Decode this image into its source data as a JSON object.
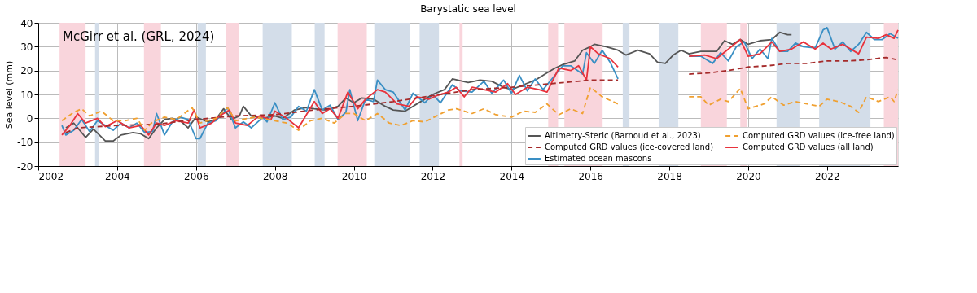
{
  "chart_data": {
    "type": "line",
    "title": "Barystatic sea level",
    "ylabel": "Sea level (mm)",
    "annotations": [
      "McGirr et al. (GRL, 2024)"
    ],
    "xlim": [
      2002,
      2023.8
    ],
    "xticks": [
      2002,
      2004,
      2006,
      2008,
      2010,
      2012,
      2014,
      2016,
      2018,
      2020,
      2022
    ],
    "ylim": [
      -20,
      40
    ],
    "yticks": [
      -20,
      -10,
      0,
      10,
      20,
      30,
      40
    ],
    "grid": true,
    "legend": "bottom right",
    "marker": "none",
    "bands": [
      {
        "axis": "x",
        "from": 2002.54,
        "to": 2003.2,
        "color": "#f9d5dc"
      },
      {
        "axis": "x",
        "from": 2003.44,
        "to": 2003.53,
        "color": "#d3dde9"
      },
      {
        "axis": "x",
        "from": 2004.68,
        "to": 2005.11,
        "color": "#f9d5dc"
      },
      {
        "axis": "x",
        "from": 2006.04,
        "to": 2006.25,
        "color": "#d3dde9"
      },
      {
        "axis": "x",
        "from": 2006.76,
        "to": 2007.09,
        "color": "#f9d5dc"
      },
      {
        "axis": "x",
        "from": 2007.69,
        "to": 2008.43,
        "color": "#d3dde9"
      },
      {
        "axis": "x",
        "from": 2009.01,
        "to": 2009.26,
        "color": "#d3dde9"
      },
      {
        "axis": "x",
        "from": 2009.59,
        "to": 2010.33,
        "color": "#f9d5dc"
      },
      {
        "axis": "x",
        "from": 2010.52,
        "to": 2011.42,
        "color": "#d3dde9"
      },
      {
        "axis": "x",
        "from": 2011.67,
        "to": 2012.16,
        "color": "#d3dde9"
      },
      {
        "axis": "x",
        "from": 2012.68,
        "to": 2012.76,
        "color": "#f9d5dc"
      },
      {
        "axis": "x",
        "from": 2014.93,
        "to": 2015.18,
        "color": "#f9d5dc"
      },
      {
        "axis": "x",
        "from": 2015.34,
        "to": 2016.31,
        "color": "#f9d5dc"
      },
      {
        "axis": "x",
        "from": 2016.82,
        "to": 2016.99,
        "color": "#d3dde9"
      },
      {
        "axis": "x",
        "from": 2017.73,
        "to": 2018.23,
        "color": "#d3dde9"
      },
      {
        "axis": "x",
        "from": 2018.8,
        "to": 2019.46,
        "color": "#f9d5dc"
      },
      {
        "axis": "x",
        "from": 2019.8,
        "to": 2019.96,
        "color": "#f9d5dc"
      },
      {
        "axis": "x",
        "from": 2020.72,
        "to": 2021.3,
        "color": "#d3dde9"
      },
      {
        "axis": "x",
        "from": 2021.8,
        "to": 2023.1,
        "color": "#d3dde9"
      },
      {
        "axis": "x",
        "from": 2023.44,
        "to": 2023.8,
        "color": "#f9d5dc"
      }
    ],
    "series": [
      {
        "name": "Altimetry-Steric (Barnoud et al., 2023)",
        "color": "#555555",
        "line_style": "solid",
        "x": [
          2002.7,
          2002.9,
          2003.2,
          2003.4,
          2003.7,
          2003.9,
          2004.1,
          2004.4,
          2004.6,
          2004.8,
          2005.0,
          2005.2,
          2005.4,
          2005.6,
          2005.8,
          2006.0,
          2006.3,
          2006.5,
          2006.7,
          2006.9,
          2007.1,
          2007.2,
          2007.4,
          2007.7,
          2008.0,
          2008.2,
          2008.5,
          2008.8,
          2009.0,
          2009.3,
          2009.6,
          2009.8,
          2010.0,
          2010.2,
          2010.5,
          2010.8,
          2011.0,
          2011.3,
          2011.5,
          2011.8,
          2012.0,
          2012.3,
          2012.5,
          2012.9,
          2013.2,
          2013.5,
          2013.8,
          2014.0,
          2014.3,
          2014.6,
          2014.9,
          2015.1,
          2015.3,
          2015.6,
          2015.8,
          2016.0,
          2016.1,
          2016.4,
          2016.7,
          2016.9,
          2017.2,
          2017.5,
          2017.7,
          2017.9,
          2018.1,
          2018.3,
          2018.5,
          2018.8,
          2019.2,
          2019.4,
          2019.6,
          2019.8,
          2020.0,
          2020.3,
          2020.6,
          2020.8,
          2021.0,
          2021.1
        ],
        "values": [
          -4,
          -2,
          -8,
          -4.5,
          -9.5,
          -9.5,
          -7,
          -6,
          -6.5,
          -8.5,
          -4,
          -0.5,
          0,
          -1,
          -4,
          0.5,
          -1.5,
          -0.5,
          4,
          -0.5,
          1,
          5,
          1,
          0,
          1,
          0,
          3.5,
          4.5,
          4,
          3.5,
          5,
          8.5,
          6.5,
          8.5,
          8,
          5,
          3.5,
          3,
          5,
          8,
          10,
          12,
          16.5,
          15,
          16,
          15.5,
          13,
          12,
          14,
          16,
          19,
          21,
          22.5,
          24,
          28.5,
          30,
          31,
          30,
          28.5,
          26.5,
          28.5,
          27,
          23.5,
          23,
          26.5,
          28.5,
          27,
          28,
          28,
          32.5,
          31,
          33,
          31,
          32.5,
          33,
          36,
          35,
          35
        ]
      },
      {
        "name": "Estimated ocean mascons",
        "color": "#3a8fc4",
        "line_style": "solid",
        "x": [
          2002.6,
          2002.7,
          2002.9,
          2003.1,
          2003.3,
          2003.5,
          2003.7,
          2003.9,
          2004.1,
          2004.3,
          2004.5,
          2004.7,
          2004.9,
          2005.0,
          2005.2,
          2005.4,
          2005.6,
          2005.8,
          2006.0,
          2006.1,
          2006.3,
          2006.5,
          2006.7,
          2006.8,
          2007.0,
          2007.2,
          2007.4,
          2007.7,
          2007.8,
          2008.0,
          2008.2,
          2008.4,
          2008.6,
          2008.8,
          2009.0,
          2009.2,
          2009.4,
          2009.6,
          2009.8,
          2009.9,
          2010.1,
          2010.3,
          2010.5,
          2010.6,
          2010.8,
          2011.0,
          2011.3,
          2011.5,
          2011.8,
          2012.0,
          2012.2,
          2012.5,
          2012.7,
          2013.0,
          2013.3,
          2013.5,
          2013.8,
          2014.0,
          2014.2,
          2014.4,
          2014.6,
          2014.8,
          2015.1,
          2015.3,
          2015.5,
          2015.8,
          2015.9,
          2016.1,
          2016.3,
          2016.5,
          2016.7,
          2017.6,
          2018.5,
          2018.8,
          2019.1,
          2019.3,
          2019.5,
          2019.7,
          2019.9,
          2020.1,
          2020.3,
          2020.5,
          2020.6,
          2020.8,
          2021.0,
          2021.2,
          2021.4,
          2021.7,
          2021.9,
          2022.0,
          2022.2,
          2022.4,
          2022.6,
          2022.8,
          2023.0,
          2023.2,
          2023.4,
          2023.6,
          2023.8
        ],
        "values": [
          -3,
          -7,
          -5,
          -0.5,
          -5.5,
          -1,
          -3,
          -5,
          -2,
          -4,
          -2,
          -6,
          -5.5,
          2,
          -7,
          -1.5,
          0.5,
          -0.5,
          -8.5,
          -8.5,
          -2,
          -1,
          2.5,
          4.5,
          -4,
          -1.5,
          -4,
          0.5,
          -1.5,
          6.5,
          -0.5,
          0.5,
          5,
          3,
          12,
          3.5,
          5.5,
          -0.5,
          2.5,
          12,
          -1,
          8,
          7,
          16,
          12,
          11,
          3.5,
          10.5,
          6.5,
          10,
          6.5,
          14,
          11.5,
          11,
          15.5,
          10.5,
          16,
          10.5,
          18,
          11.5,
          16.5,
          12,
          18,
          22,
          22,
          18.5,
          27.5,
          23,
          28.5,
          23.5,
          16.5,
          null,
          26,
          26,
          23,
          27.5,
          24,
          30,
          32,
          25,
          29,
          25,
          33.5,
          28,
          28,
          31.5,
          30,
          29.5,
          37,
          38,
          29,
          32,
          28,
          31,
          36,
          33,
          33,
          35.5,
          33.5
        ]
      },
      {
        "name": "Computed GRD values (all land)",
        "color": "#e8323c",
        "line_style": "solid",
        "x": [
          2002.6,
          2002.8,
          2003.0,
          2003.2,
          2003.5,
          2003.7,
          2004.0,
          2004.3,
          2004.6,
          2004.8,
          2005.0,
          2005.2,
          2005.5,
          2005.8,
          2005.95,
          2006.1,
          2006.4,
          2006.6,
          2006.85,
          2007.0,
          2007.3,
          2007.6,
          2007.9,
          2008.0,
          2008.3,
          2008.6,
          2009.0,
          2009.2,
          2009.4,
          2009.6,
          2009.85,
          2010.1,
          2010.3,
          2010.6,
          2010.8,
          2011.1,
          2011.4,
          2011.6,
          2011.9,
          2012.1,
          2012.4,
          2012.6,
          2012.8,
          2013.0,
          2013.3,
          2013.6,
          2013.9,
          2014.1,
          2014.4,
          2014.7,
          2014.9,
          2015.2,
          2015.5,
          2015.7,
          2015.9,
          2016.0,
          2016.2,
          2016.5,
          2016.7,
          2017.6,
          2018.5,
          2018.9,
          2019.2,
          2019.5,
          2019.8,
          2020.0,
          2020.3,
          2020.6,
          2020.8,
          2021.1,
          2021.4,
          2021.7,
          2021.9,
          2022.1,
          2022.4,
          2022.6,
          2022.8,
          2023.0,
          2023.3,
          2023.5,
          2023.7,
          2023.8
        ],
        "values": [
          -7,
          -3,
          2,
          -2,
          0,
          -3.5,
          -1,
          -4,
          -3,
          -7,
          -2,
          -3,
          -1,
          -2,
          3.5,
          -4,
          -2,
          1,
          3.5,
          -2,
          -3,
          1,
          -0.5,
          3,
          0,
          -4,
          7,
          2,
          4,
          0,
          11,
          4,
          8,
          12,
          11,
          6,
          5,
          9,
          8,
          9.5,
          11,
          13,
          9,
          13,
          12,
          11,
          14.5,
          10,
          13,
          12,
          11,
          21,
          20,
          22,
          16,
          30,
          27,
          25,
          21.5,
          null,
          26,
          26.5,
          25,
          29,
          33,
          26,
          27,
          32,
          28,
          29,
          32,
          29,
          31.5,
          29,
          31,
          29,
          27,
          34,
          33.5,
          35,
          33.5,
          37
        ]
      },
      {
        "name": "Computed GRD values (ice-covered land)",
        "color": "#a52a2a",
        "line_style": "dashed",
        "x": [
          2002.7,
          2003.0,
          2003.5,
          2004.0,
          2005.0,
          2006.0,
          2007.0,
          2008.0,
          2009.0,
          2010.0,
          2011.0,
          2012.0,
          2013.0,
          2014.0,
          2015.0,
          2016.0,
          2016.7,
          2017.6,
          2018.5,
          2019.0,
          2019.5,
          2020.0,
          2020.5,
          2021.0,
          2021.5,
          2022.0,
          2022.5,
          2023.0,
          2023.5,
          2023.8
        ],
        "values": [
          -6,
          -4,
          -3.5,
          -3,
          -2.5,
          -0.5,
          1,
          1.5,
          3.5,
          5,
          7,
          9.5,
          12,
          13,
          14.5,
          16,
          16,
          null,
          18.5,
          19,
          20,
          21.5,
          22,
          23,
          23,
          24,
          24,
          24.5,
          25.5,
          24.5
        ]
      },
      {
        "name": "Computed GRD values (ice-free land)",
        "color": "#f0a030",
        "line_style": "dashed",
        "x": [
          2002.6,
          2002.9,
          2003.1,
          2003.3,
          2003.6,
          2003.9,
          2004.2,
          2004.5,
          2004.7,
          2004.9,
          2005.2,
          2005.5,
          2005.9,
          2006.1,
          2006.5,
          2006.8,
          2007.0,
          2007.5,
          2008.0,
          2008.3,
          2008.6,
          2008.9,
          2009.2,
          2009.5,
          2009.8,
          2010.0,
          2010.3,
          2010.6,
          2010.9,
          2011.2,
          2011.5,
          2011.8,
          2012.1,
          2012.4,
          2012.6,
          2013.0,
          2013.3,
          2013.6,
          2014.0,
          2014.3,
          2014.6,
          2014.9,
          2015.2,
          2015.5,
          2015.8,
          2016.0,
          2016.3,
          2016.7,
          2017.6,
          2018.5,
          2018.8,
          2019.0,
          2019.3,
          2019.5,
          2019.8,
          2020.0,
          2020.4,
          2020.6,
          2020.9,
          2021.2,
          2021.5,
          2021.8,
          2022.0,
          2022.3,
          2022.6,
          2022.8,
          2023.0,
          2023.3,
          2023.6,
          2023.7,
          2023.8
        ],
        "values": [
          -1,
          2.5,
          4,
          1,
          3,
          -1,
          -1,
          0,
          -5,
          -1.5,
          0.5,
          -0.5,
          4.5,
          -2,
          0,
          4.5,
          -1,
          0.5,
          -1,
          -2,
          -5,
          -1,
          0,
          -2,
          2,
          2,
          -1,
          2,
          -2,
          -3,
          -1,
          -1.5,
          1,
          3.5,
          4,
          2,
          4,
          1.5,
          0.5,
          3,
          2.5,
          6,
          1.5,
          4,
          2,
          13,
          9,
          6,
          null,
          9,
          9,
          5.5,
          8,
          7,
          12.5,
          4,
          6,
          9,
          5.5,
          7,
          6,
          5,
          8,
          7,
          5,
          2.5,
          9,
          7,
          9,
          7,
          12
        ]
      }
    ]
  }
}
